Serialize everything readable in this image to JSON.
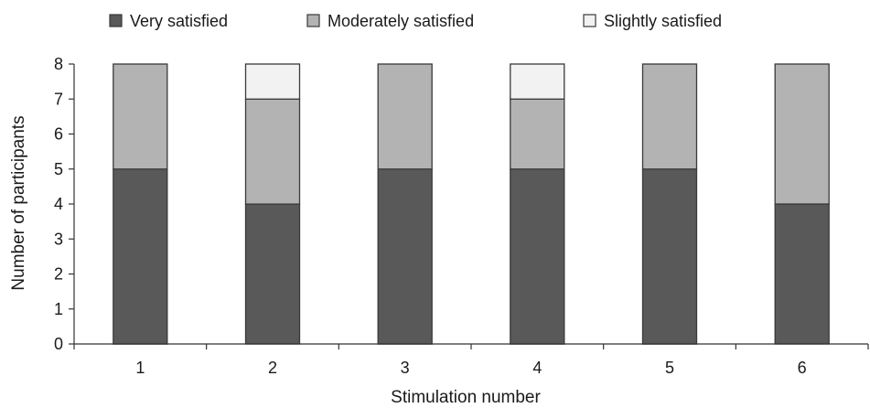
{
  "chart_data": {
    "type": "bar",
    "stacked": true,
    "categories": [
      "1",
      "2",
      "3",
      "4",
      "5",
      "6"
    ],
    "series": [
      {
        "name": "Very satisfied",
        "values": [
          5,
          4,
          5,
          5,
          5,
          4
        ],
        "color": "#595959"
      },
      {
        "name": "Moderately satisfied",
        "values": [
          3,
          3,
          3,
          2,
          3,
          4
        ],
        "color": "#b3b3b3"
      },
      {
        "name": "Slightly satisfied",
        "values": [
          0,
          1,
          0,
          1,
          0,
          0
        ],
        "color": "#f2f2f2"
      }
    ],
    "xlabel": "Stimulation number",
    "ylabel": "Number of participants",
    "ylim": [
      0,
      8
    ],
    "yticks": [
      0,
      1,
      2,
      3,
      4,
      5,
      6,
      7,
      8
    ],
    "grid": false,
    "legend_position": "top"
  }
}
